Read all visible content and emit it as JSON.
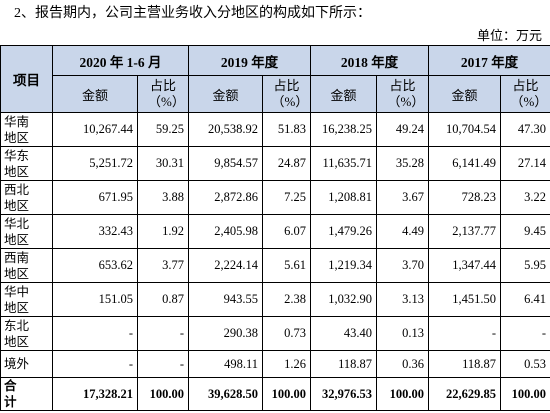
{
  "intro": "2、报告期内，公司主营业务收入分地区的构成如下所示：",
  "unit": "单位：万元",
  "table": {
    "item_header": "项目",
    "years": [
      "2020 年 1-6 月",
      "2019 年度",
      "2018 年度",
      "2017 年度"
    ],
    "sub_headers": [
      "金额",
      "占比（%）"
    ],
    "rows": [
      [
        "华南地区",
        "10,267.44",
        "59.25",
        "20,538.92",
        "51.83",
        "16,238.25",
        "49.24",
        "10,704.54",
        "47.30"
      ],
      [
        "华东地区",
        "5,251.72",
        "30.31",
        "9,854.57",
        "24.87",
        "11,635.71",
        "35.28",
        "6,141.49",
        "27.14"
      ],
      [
        "西北地区",
        "671.95",
        "3.88",
        "2,872.86",
        "7.25",
        "1,208.81",
        "3.67",
        "728.23",
        "3.22"
      ],
      [
        "华北地区",
        "332.43",
        "1.92",
        "2,405.98",
        "6.07",
        "1,479.26",
        "4.49",
        "2,137.77",
        "9.45"
      ],
      [
        "西南地区",
        "653.62",
        "3.77",
        "2,224.14",
        "5.61",
        "1,219.34",
        "3.70",
        "1,347.44",
        "5.95"
      ],
      [
        "华中地区",
        "151.05",
        "0.87",
        "943.55",
        "2.38",
        "1,032.90",
        "3.13",
        "1,451.50",
        "6.41"
      ],
      [
        "东北地区",
        "-",
        "-",
        "290.38",
        "0.73",
        "43.40",
        "0.13",
        "-",
        "-"
      ],
      [
        "境外",
        "-",
        "-",
        "498.11",
        "1.26",
        "118.87",
        "0.36",
        "118.87",
        "0.53"
      ],
      [
        "合 计",
        "17,328.21",
        "100.00",
        "39,628.50",
        "100.00",
        "32,976.53",
        "100.00",
        "22,629.85",
        "100.00"
      ]
    ]
  }
}
